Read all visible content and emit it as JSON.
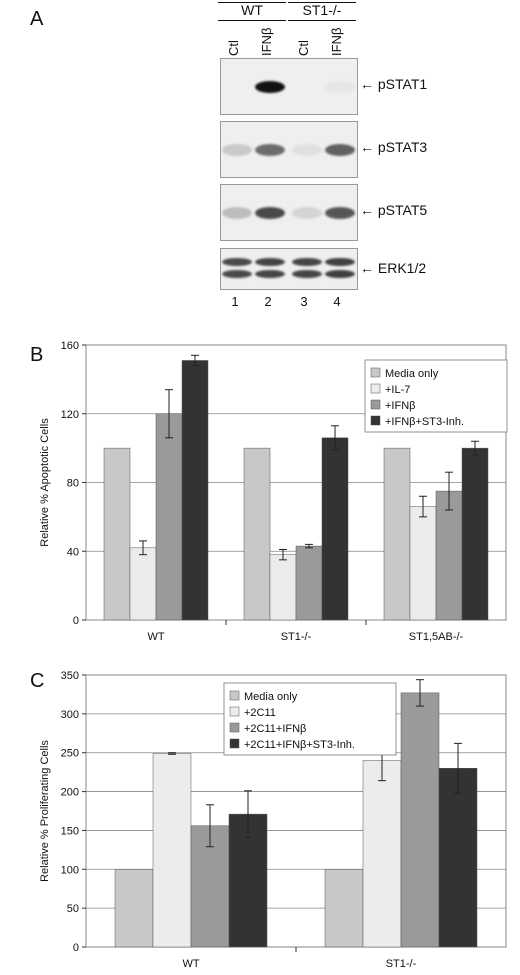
{
  "panel_a": {
    "letter": "A",
    "groups": [
      {
        "label": "WT",
        "lanes": [
          "Ctl",
          "IFNβ"
        ]
      },
      {
        "label": "ST1-/-",
        "lanes": [
          "Ctl",
          "IFNβ"
        ]
      }
    ],
    "lane_numbers": [
      "1",
      "2",
      "3",
      "4"
    ],
    "blots": [
      {
        "label": "pSTAT1",
        "bands": [
          0.0,
          0.95,
          0.0,
          0.02
        ]
      },
      {
        "label": "pSTAT3",
        "bands": [
          0.15,
          0.55,
          0.05,
          0.6
        ]
      },
      {
        "label": "pSTAT5",
        "bands": [
          0.2,
          0.7,
          0.1,
          0.65
        ]
      },
      {
        "label": "ERK1/2",
        "bands": [
          0.7,
          0.72,
          0.72,
          0.75
        ]
      }
    ]
  },
  "chart_data": [
    {
      "panel": "B",
      "type": "bar",
      "ylabel": "Relative % Apoptotic Cells",
      "ylim": [
        0,
        160
      ],
      "yticks": [
        0,
        40,
        80,
        120,
        160
      ],
      "categories": [
        "WT",
        "ST1-/-",
        "ST1,5AB-/-"
      ],
      "legend_position": "top-right",
      "grid": true,
      "series": [
        {
          "name": "Media only",
          "color": "#c8c8c8",
          "values": [
            100,
            100,
            100
          ],
          "errors": [
            0,
            0,
            0
          ]
        },
        {
          "name": "+IL-7",
          "color": "#ececec",
          "values": [
            42,
            38,
            66
          ],
          "errors": [
            4,
            3,
            6
          ]
        },
        {
          "name": "+IFNβ",
          "color": "#9a9a9a",
          "values": [
            120,
            43,
            75
          ],
          "errors": [
            14,
            1,
            11
          ]
        },
        {
          "name": "+IFNβ+ST3-Inh.",
          "color": "#333333",
          "values": [
            151,
            106,
            100
          ],
          "errors": [
            3,
            7,
            4
          ]
        }
      ]
    },
    {
      "panel": "C",
      "type": "bar",
      "ylabel": "Relative % Proliferating Cells",
      "ylim": [
        0,
        350
      ],
      "yticks": [
        0,
        50,
        100,
        150,
        200,
        250,
        300,
        350
      ],
      "categories": [
        "WT",
        "ST1-/-"
      ],
      "legend_position": "top-center",
      "grid": true,
      "series": [
        {
          "name": "Media only",
          "color": "#c8c8c8",
          "values": [
            100,
            100
          ],
          "errors": [
            0,
            0
          ]
        },
        {
          "name": "+2C11",
          "color": "#ececec",
          "values": [
            249,
            240
          ],
          "errors": [
            1,
            26
          ]
        },
        {
          "name": "+2C11+IFNβ",
          "color": "#9a9a9a",
          "values": [
            156,
            327
          ],
          "errors": [
            27,
            17
          ]
        },
        {
          "name": "+2C11+IFNβ+ST3-Inh.",
          "color": "#333333",
          "values": [
            171,
            230
          ],
          "errors": [
            30,
            32
          ]
        }
      ]
    }
  ]
}
